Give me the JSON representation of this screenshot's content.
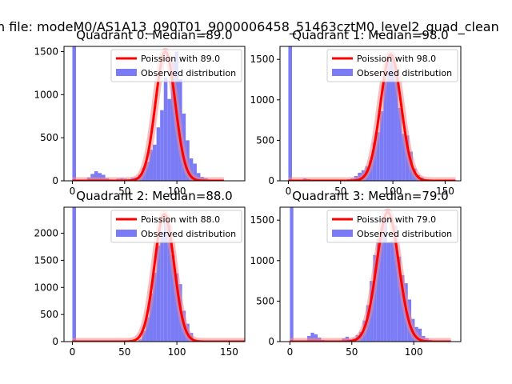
{
  "figure": {
    "suptitle": "n file: modeM0/AS1A13_090T01_9000006458_51463cztM0_level2_quad_clean"
  },
  "colors": {
    "hist": "#7b7bf5",
    "poisson": "#ff0000",
    "poisson_glow": "#f28b8b"
  },
  "chart_data": [
    {
      "type": "bar",
      "title": "Quadrant 0: Median=89.0",
      "median": 89.0,
      "xlim": [
        -8,
        165
      ],
      "ylim": [
        0,
        1560
      ],
      "xticks": [
        0,
        50,
        100
      ],
      "yticks": [
        0,
        500,
        1000,
        1500
      ],
      "legend": {
        "position": "top-right",
        "entries": [
          "Poission with 89.0",
          "Observed distribution"
        ]
      },
      "series": [
        {
          "name": "Observed distribution",
          "type": "histogram",
          "bin_width": 3.5,
          "bin_starts": [
            0,
            14,
            17.5,
            21,
            24.5,
            28,
            31.5,
            35,
            38.5,
            42,
            45.5,
            49,
            52.5,
            56,
            59.5,
            63,
            66.5,
            70,
            73.5,
            77,
            80.5,
            84,
            87.5,
            91,
            94.5,
            98,
            101.5,
            105,
            108.5,
            112,
            115.5,
            119,
            122.5,
            126,
            129.5,
            133,
            136.5,
            140
          ],
          "counts": [
            1560,
            40,
            80,
            110,
            90,
            70,
            30,
            15,
            10,
            25,
            30,
            25,
            20,
            35,
            40,
            70,
            150,
            220,
            360,
            420,
            620,
            820,
            1200,
            950,
            1380,
            1500,
            1180,
            780,
            470,
            260,
            200,
            90,
            45,
            30,
            15,
            10,
            5,
            3
          ]
        },
        {
          "name": "Poission with 89.0",
          "type": "line",
          "mean": 89.0,
          "x_range": [
            0,
            145
          ],
          "peak": 1500
        }
      ]
    },
    {
      "type": "bar",
      "title": "Quadrant 1: Median=98.0",
      "median": 98.0,
      "xlim": [
        -8,
        165
      ],
      "ylim": [
        0,
        1660
      ],
      "xticks": [
        0,
        50,
        100,
        150
      ],
      "yticks": [
        0,
        500,
        1000,
        1500
      ],
      "legend": {
        "position": "top-right",
        "entries": [
          "Poission with 98.0",
          "Observed distribution"
        ]
      },
      "series": [
        {
          "name": "Observed distribution",
          "type": "histogram",
          "bin_width": 3.5,
          "bin_starts": [
            0,
            14,
            17.5,
            52.5,
            56,
            59.5,
            63,
            66.5,
            70,
            73.5,
            77,
            80.5,
            84,
            87.5,
            91,
            94.5,
            98,
            101.5,
            105,
            108.5,
            112,
            115.5,
            119,
            122.5,
            126,
            129.5,
            133,
            136.5
          ],
          "counts": [
            1660,
            30,
            20,
            10,
            20,
            30,
            60,
            100,
            130,
            180,
            250,
            470,
            600,
            860,
            1270,
            1500,
            1510,
            1340,
            900,
            580,
            560,
            360,
            150,
            70,
            40,
            20,
            10,
            5
          ]
        },
        {
          "name": "Poission with 98.0",
          "type": "line",
          "mean": 98.0,
          "x_range": [
            0,
            160
          ],
          "peak": 1560
        }
      ]
    },
    {
      "type": "bar",
      "title": "Quadrant 2: Median=88.0",
      "median": 88.0,
      "xlim": [
        -8,
        165
      ],
      "ylim": [
        0,
        2480
      ],
      "xticks": [
        0,
        50,
        100,
        150
      ],
      "yticks": [
        0,
        500,
        1000,
        1500,
        2000
      ],
      "legend": {
        "position": "top-right",
        "entries": [
          "Poission with 88.0",
          "Observed distribution"
        ]
      },
      "series": [
        {
          "name": "Observed distribution",
          "type": "histogram",
          "bin_width": 3.5,
          "bin_starts": [
            0,
            63,
            66.5,
            70,
            73.5,
            77,
            80.5,
            84,
            87.5,
            91,
            94.5,
            98,
            101.5,
            105,
            108.5,
            112,
            115.5,
            119
          ],
          "counts": [
            2480,
            40,
            200,
            450,
            890,
            1270,
            1770,
            2030,
            2200,
            2150,
            1600,
            1260,
            1060,
            570,
            330,
            160,
            40,
            10
          ]
        },
        {
          "name": "Poission with 88.0",
          "type": "line",
          "mean": 88.0,
          "x_range": [
            0,
            165
          ],
          "peak": 2350
        }
      ]
    },
    {
      "type": "bar",
      "title": "Quadrant 3: Median=79.0",
      "median": 79.0,
      "xlim": [
        -8,
        138
      ],
      "ylim": [
        0,
        1660
      ],
      "xticks": [
        0,
        50,
        100
      ],
      "yticks": [
        0,
        500,
        1000,
        1500
      ],
      "legend": {
        "position": "top-right",
        "entries": [
          "Poission with 79.0",
          "Observed distribution"
        ]
      },
      "series": [
        {
          "name": "Observed distribution",
          "type": "histogram",
          "bin_width": 2.8,
          "bin_starts": [
            0,
            14,
            16.8,
            19.6,
            22.4,
            25.2,
            42,
            44.8,
            47.6,
            50.4,
            53.2,
            56,
            58.8,
            61.6,
            64.4,
            67.2,
            70,
            72.8,
            75.6,
            78.4,
            81.2,
            84,
            86.8,
            89.6,
            92.4,
            95.2,
            98,
            100.8,
            103.6,
            106.4,
            109.2,
            112,
            114.8,
            117.6
          ],
          "counts": [
            1660,
            70,
            110,
            90,
            50,
            20,
            40,
            60,
            30,
            40,
            80,
            120,
            260,
            450,
            750,
            1070,
            1270,
            1400,
            1530,
            1220,
            1240,
            1430,
            1050,
            820,
            720,
            520,
            280,
            180,
            160,
            70,
            40,
            20,
            10,
            5
          ]
        },
        {
          "name": "Poission with 79.0",
          "type": "line",
          "mean": 79.0,
          "x_range": [
            0,
            130
          ],
          "peak": 1600
        }
      ]
    }
  ]
}
